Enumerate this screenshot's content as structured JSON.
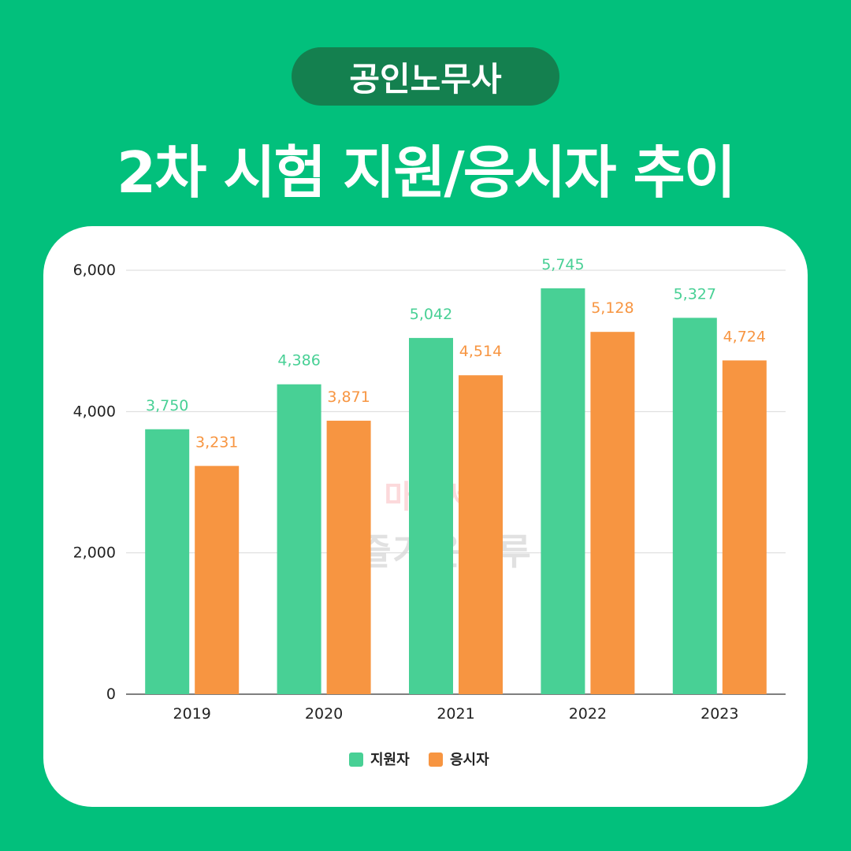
{
  "header": {
    "badge": "공인노무사",
    "title": "2차 시험 지원/응시자 추이"
  },
  "watermark": {
    "line1": "마처세대",
    "line2": "즐거운하루"
  },
  "colors": {
    "background": "#02c07c",
    "badge": "#14804f",
    "applicants": "#48d095",
    "examinees": "#f79541"
  },
  "chart_data": {
    "type": "bar",
    "categories": [
      "2019",
      "2020",
      "2021",
      "2022",
      "2023"
    ],
    "series": [
      {
        "name": "지원자",
        "values": [
          3750,
          4386,
          5042,
          5745,
          5327
        ],
        "labels": [
          "3,750",
          "4,386",
          "5,042",
          "5,745",
          "5,327"
        ]
      },
      {
        "name": "응시자",
        "values": [
          3231,
          3871,
          4514,
          5128,
          4724
        ],
        "labels": [
          "3,231",
          "3,871",
          "4,514",
          "5,128",
          "4,724"
        ]
      }
    ],
    "yticks": [
      "0",
      "2,000",
      "4,000",
      "6,000"
    ],
    "ylim": [
      0,
      6000
    ],
    "grid": true,
    "legend": "bottom"
  }
}
